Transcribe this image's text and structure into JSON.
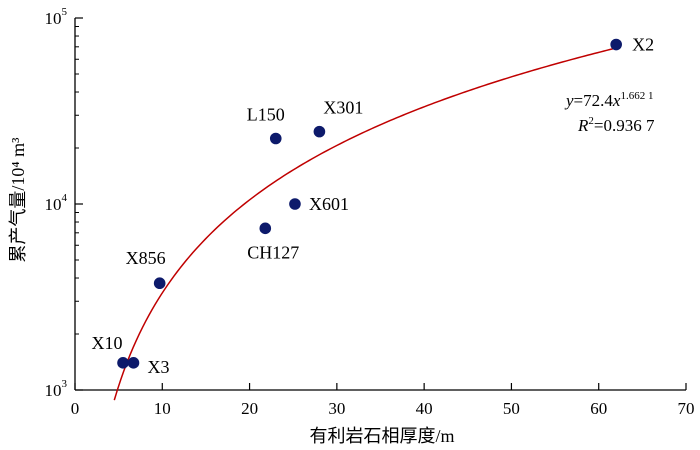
{
  "chart_data": {
    "type": "scatter",
    "xlabel": "有利岩石相厚度/m",
    "ylabel": "累产气量/10⁴ m³",
    "x_scale": "linear",
    "y_scale": "log",
    "xlim": [
      0,
      70
    ],
    "ylim": [
      1000,
      100000
    ],
    "x_ticks": [
      0,
      10,
      20,
      30,
      40,
      50,
      60,
      70
    ],
    "x_tick_labels": [
      "0",
      "10",
      "20",
      "30",
      "40",
      "50",
      "60",
      "70"
    ],
    "y_ticks": [
      1000,
      10000,
      100000
    ],
    "y_tick_labels": [
      {
        "base": "10",
        "exp": "3"
      },
      {
        "base": "10",
        "exp": "4"
      },
      {
        "base": "10",
        "exp": "5"
      }
    ],
    "grid": false,
    "points": [
      {
        "label": "X2",
        "x": 62.0,
        "y": 72000
      },
      {
        "label": "L150",
        "x": 23.0,
        "y": 22500
      },
      {
        "label": "X301",
        "x": 28.0,
        "y": 24500
      },
      {
        "label": "X601",
        "x": 25.2,
        "y": 10000
      },
      {
        "label": "CH127",
        "x": 21.8,
        "y": 7400
      },
      {
        "label": "X856",
        "x": 9.7,
        "y": 3750
      },
      {
        "label": "X10",
        "x": 5.5,
        "y": 1400
      },
      {
        "label": "X3",
        "x": 6.7,
        "y": 1400
      }
    ],
    "fit": {
      "equation_lhs": "y",
      "equation_rhs": "=72.4",
      "equation_var": "x",
      "equation_exp": "1.662 1",
      "a": 72.4,
      "b": 1.6621,
      "r2_sym": "R",
      "r2_sup": "2",
      "r2_value": "=0.936 7",
      "x_range": [
        4.5,
        62
      ]
    },
    "colors": {
      "points": "#0d1a6b",
      "fit": "#c00000",
      "axis": "#000000"
    }
  }
}
